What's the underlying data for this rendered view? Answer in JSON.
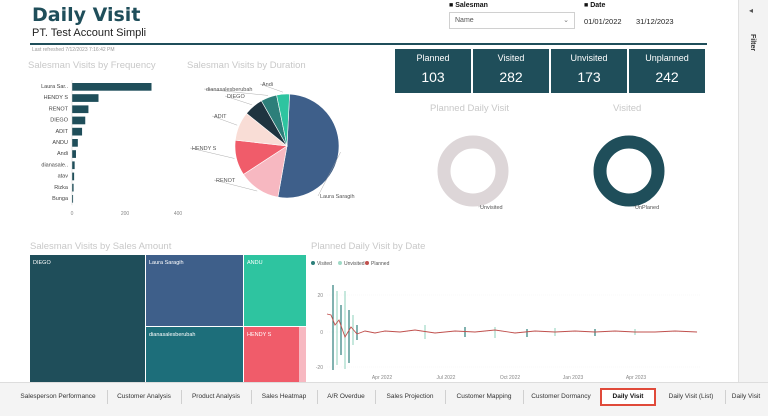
{
  "header": {
    "title": "Daily Visit",
    "subtitle": "PT. Test Account Simpli",
    "refreshed": "Last refreshed 7/12/2023 7:16:42 PM"
  },
  "slicers": {
    "salesman_label": "Salesman",
    "salesman_value": "Name",
    "date_label": "Date",
    "date_start": "01/01/2022",
    "date_end": "31/12/2023"
  },
  "cards": [
    {
      "label": "Planned",
      "value": "103"
    },
    {
      "label": "Visited",
      "value": "282"
    },
    {
      "label": "Unvisited",
      "value": "173"
    },
    {
      "label": "Unplanned",
      "value": "242"
    }
  ],
  "visual_titles": {
    "frequency": "Salesman Visits by Frequency",
    "duration": "Salesman Visits by Duration",
    "planned_daily": "Planned Daily Visit",
    "visited": "Visited",
    "amount": "Salesman Visits by Sales Amount",
    "by_date": "Planned Daily Visit by Date"
  },
  "side_panel": {
    "filter_label": "Filter"
  },
  "tabs": [
    "Salesperson Performance",
    "Customer Analysis",
    "Product Analysis",
    "Sales Heatmap",
    "A/R Overdue",
    "Sales Projection",
    "Customer Mapping",
    "Customer Dormancy",
    "Daily Visit",
    "Daily Visit (List)",
    "Daily Visit"
  ],
  "active_tab": "Daily Visit",
  "colors": {
    "brand": "#1f4e5a",
    "bar": "#1f4e5a",
    "active_tab_border": "#e04a3a"
  },
  "chart_data": [
    {
      "type": "bar",
      "orientation": "horizontal",
      "categories": [
        "Laura Sar..",
        "HENDY S",
        "RENOT",
        "DIEGO",
        "ADIT",
        "ANDU",
        "Andi",
        "dianasale..",
        "atav",
        "Rizka",
        "Bunga"
      ],
      "values": [
        300,
        100,
        62,
        50,
        38,
        22,
        15,
        10,
        8,
        6,
        4
      ],
      "x_ticks": [
        "0",
        "200",
        "400"
      ],
      "xlim": [
        0,
        400
      ]
    },
    {
      "type": "pie",
      "labels": [
        "Laura Saragih",
        "RENOT",
        "HENDY S",
        "ADIT",
        "DIEGO",
        "dianasalesberubah",
        "Andi"
      ],
      "values": [
        52,
        13,
        11,
        9,
        6,
        5,
        4
      ],
      "colors": [
        "#3e5f8a",
        "#f7b8c1",
        "#f05c6a",
        "#f9ddd6",
        "#1f3440",
        "#2d7f7a",
        "#2ec4a0"
      ]
    },
    {
      "type": "pie",
      "variant": "donut",
      "labels": [
        "Unvisited"
      ],
      "values": [
        100
      ],
      "colors": [
        "#ddd6d8"
      ]
    },
    {
      "type": "pie",
      "variant": "donut",
      "labels": [
        "UnPlaned"
      ],
      "values": [
        100
      ],
      "colors": [
        "#1f4e5a"
      ]
    },
    {
      "type": "treemap",
      "labels": [
        "DIEGO",
        "Laura Saragih",
        "dianasalesberubah",
        "ANDU",
        "HENDY S"
      ],
      "colors": [
        "#1f4e5a",
        "#3e5f8a",
        "#1d6e7a",
        "#2ec4a0",
        "#f05c6a"
      ]
    },
    {
      "type": "line",
      "legend": [
        "Visited",
        "Unvisited",
        "Planned"
      ],
      "legend_colors": [
        "#2d7f7a",
        "#9fd9c6",
        "#c0504d"
      ],
      "y_ticks": [
        "20",
        "0",
        "-20"
      ],
      "x_ticks": [
        "Apr 2022",
        "Jul 2022",
        "Oct 2022",
        "Jan 2023",
        "Apr 2023"
      ]
    }
  ]
}
